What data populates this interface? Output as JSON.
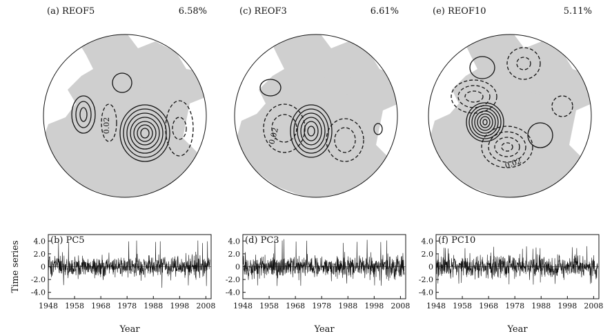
{
  "figure": {
    "maps": [
      {
        "title": "(a) REOF5",
        "variance": "6.58%",
        "contour_label": "0.02"
      },
      {
        "title": "(c) REOF3",
        "variance": "6.61%",
        "contour_label": "0.02"
      },
      {
        "title": "(e) REOF10",
        "variance": "5.11%",
        "contour_label": "0.02"
      }
    ]
  },
  "chart_data": [
    {
      "type": "line",
      "title": "(b) PC5",
      "ylabel": "Time series",
      "xlabel": "Year",
      "xlim": [
        1948,
        2010
      ],
      "ylim": [
        -5,
        5
      ],
      "xticks": [
        "1948",
        "1958",
        "1968",
        "1978",
        "1988",
        "1998",
        "2008"
      ],
      "yticks": [
        "4.0",
        "2.0",
        "0",
        "-2.0",
        "-4.0"
      ],
      "series": [
        {
          "seed": 5,
          "min": -3.3,
          "max": 4.2
        }
      ]
    },
    {
      "type": "line",
      "title": "(d) PC3",
      "ylabel": "",
      "xlabel": "Year",
      "xlim": [
        1948,
        2010
      ],
      "ylim": [
        -5,
        5
      ],
      "xticks": [
        "1948",
        "1958",
        "1968",
        "1978",
        "1988",
        "1998",
        "2008"
      ],
      "yticks": [
        "4.0",
        "2.0",
        "0",
        "-2.0",
        "-4.0"
      ],
      "series": [
        {
          "seed": 3,
          "min": -3.0,
          "max": 4.3
        }
      ]
    },
    {
      "type": "line",
      "title": "(f) PC10",
      "ylabel": "",
      "xlabel": "Year",
      "xlim": [
        1948,
        2010
      ],
      "ylim": [
        -5,
        5
      ],
      "xticks": [
        "1948",
        "1958",
        "1968",
        "1978",
        "1988",
        "1998",
        "2008"
      ],
      "yticks": [
        "4.0",
        "2.0",
        "0",
        "-2.0",
        "-4.0"
      ],
      "series": [
        {
          "seed": 10,
          "min": -2.9,
          "max": 3.2
        }
      ]
    }
  ]
}
